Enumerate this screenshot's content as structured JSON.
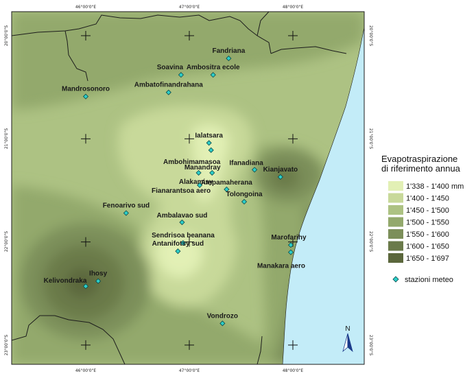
{
  "axes": {
    "top_ticks": [
      "46°00'0\"E",
      "47°00'0\"E",
      "48°00'0\"E"
    ],
    "bottom_ticks": [
      "46°00'0\"E",
      "47°00'0\"E",
      "48°00'0\"E"
    ],
    "left_ticks": [
      "20°00'0\"S",
      "21°00'0\"S",
      "22°00'0\"S",
      "23°00'0\"S"
    ],
    "right_ticks": [
      "20°00'0\"S",
      "21°00'0\"S",
      "22°00'0\"S",
      "23°00'0\"S"
    ]
  },
  "legend": {
    "title_line1": "Evapotraspirazione",
    "title_line2": "di riferimento annua",
    "classes": [
      {
        "label": "1'338 - 1'400 mm",
        "color": "#e2f0b5"
      },
      {
        "label": "1'400 - 1'450",
        "color": "#c8d99a"
      },
      {
        "label": "1'450 - 1'500",
        "color": "#adc283"
      },
      {
        "label": "1'500 - 1'550",
        "color": "#93a96c"
      },
      {
        "label": "1'550 - 1'600",
        "color": "#7c8f5a"
      },
      {
        "label": "1'600 - 1'650",
        "color": "#6a7a4a"
      },
      {
        "label": "1'650 - 1'697",
        "color": "#5b673c"
      }
    ],
    "stations_label": "stazioni meteo"
  },
  "stations": [
    {
      "name": "Fandriana",
      "lon": 47.38,
      "lat": 20.22
    },
    {
      "name": "Soavina",
      "lon": 46.92,
      "lat": 20.38
    },
    {
      "name": "Ambositra ecole",
      "lon": 47.23,
      "lat": 20.38
    },
    {
      "name": "Ambatofinandrahana",
      "lon": 46.8,
      "lat": 20.55
    },
    {
      "name": "Mandrosonoro",
      "lon": 46.0,
      "lat": 20.59
    },
    {
      "name": "Ialatsara",
      "lon": 47.19,
      "lat": 21.04
    },
    {
      "name": "Ambohimamasoa",
      "lon": 47.21,
      "lat": 21.11
    },
    {
      "name": "Ifanadiana",
      "lon": 47.63,
      "lat": 21.3
    },
    {
      "name": "Kianjavato",
      "lon": 47.88,
      "lat": 21.37
    },
    {
      "name": "Manandray",
      "lon": 47.22,
      "lat": 21.33
    },
    {
      "name": "Alakamisy",
      "lon": 47.09,
      "lat": 21.33
    },
    {
      "name": "Ampamaherana",
      "lon": 47.36,
      "lat": 21.49
    },
    {
      "name": "Fianarantsoa aero",
      "lon": 47.1,
      "lat": 21.45
    },
    {
      "name": "Tolongoina",
      "lon": 47.53,
      "lat": 21.61
    },
    {
      "name": "Fenoarivo sud",
      "lon": 46.39,
      "lat": 21.72
    },
    {
      "name": "Ambalavao sud",
      "lon": 46.93,
      "lat": 21.81
    },
    {
      "name": "Sendrisoa beanana",
      "lon": 46.94,
      "lat": 22.01
    },
    {
      "name": "Marofarihy",
      "lon": 47.98,
      "lat": 22.03
    },
    {
      "name": "Antanifotsy sud",
      "lon": 46.89,
      "lat": 22.09
    },
    {
      "name": "Manakara aero",
      "lon": 47.98,
      "lat": 22.1
    },
    {
      "name": "Ihosy",
      "lon": 46.12,
      "lat": 22.38
    },
    {
      "name": "Kelivondraka",
      "lon": 46.0,
      "lat": 22.43
    },
    {
      "name": "Vondrozo",
      "lon": 47.32,
      "lat": 22.79
    }
  ],
  "north_label": "N",
  "colors": {
    "sea": "#c3ecf8",
    "station": "#2ccfc9",
    "border": "#1b1b1b"
  }
}
